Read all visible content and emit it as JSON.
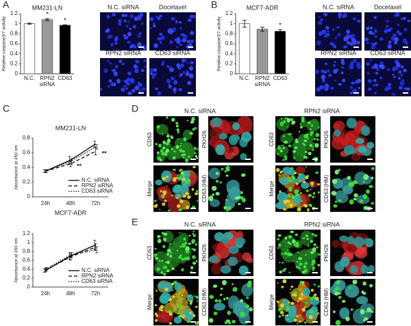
{
  "figure": {
    "panel_letters": [
      "A",
      "B",
      "C",
      "D",
      "E"
    ],
    "A_images": [
      "N.C. siRNA",
      "Docetaxel",
      "RPN2 siRNA",
      "CD63 siRNA"
    ],
    "B_images": [
      "N.C. siRNA",
      "Docetaxel",
      "RPN2 siRNA",
      "CD63 siRNA"
    ],
    "D": [
      {
        "title": "N.C. siRNA",
        "channels": [
          "CD63",
          "PKH26",
          "Merge",
          "CD63 (HM)"
        ]
      },
      {
        "title": "RPN2 siRNA",
        "channels": [
          "CD63",
          "PKH26",
          "Merge",
          "CD63 (HM)"
        ]
      }
    ],
    "E": [
      {
        "title": "N.C. siRNA",
        "channels": [
          "CD63",
          "PKH26",
          "Merge",
          "CD63 (HM)"
        ]
      },
      {
        "title": "RPN2 siRNA",
        "channels": [
          "CD63",
          "PKH26",
          "Merge",
          "CD63 (HM)"
        ]
      }
    ]
  },
  "chart_data": [
    {
      "type": "bar",
      "title": "MM231-LN",
      "ylabel": "Relative caspase3/7 activity",
      "xlabel": "siRNA",
      "categories": [
        "N.C.",
        "RPN2",
        "CD63"
      ],
      "values": [
        1.0,
        1.08,
        0.97
      ],
      "errors": [
        0.01,
        0.02,
        0.01
      ],
      "colors": [
        "#ffffff",
        "#999999",
        "#000000"
      ],
      "significance": [
        null,
        "*",
        "*"
      ],
      "ylim": [
        0,
        1.2
      ],
      "yticks": [
        0,
        0.2,
        0.4,
        0.6,
        0.8,
        1,
        1.2
      ]
    },
    {
      "type": "bar",
      "title": "MCF7-ADR",
      "ylabel": "Relative caspase3/7 activity",
      "xlabel": "siRNA",
      "categories": [
        "N.C.",
        "RPN2",
        "CD63"
      ],
      "values": [
        1.0,
        0.89,
        0.85
      ],
      "errors": [
        0.07,
        0.04,
        0.03
      ],
      "colors": [
        "#ffffff",
        "#999999",
        "#000000"
      ],
      "significance": [
        null,
        null,
        "*"
      ],
      "ylim": [
        0,
        1.2
      ],
      "yticks": [
        0,
        0.2,
        0.4,
        0.6,
        0.8,
        1,
        1.2
      ]
    },
    {
      "type": "line",
      "title": "MM231-LN",
      "ylabel": "Absorbance at 450 nm",
      "categories": [
        "24h",
        "48h",
        "72h"
      ],
      "ylim": [
        0,
        0.8
      ],
      "yticks": [
        0,
        0.2,
        0.4,
        0.6,
        0.8
      ],
      "series": [
        {
          "name": "N.C. siRNA",
          "color": "#000000",
          "dash": "solid",
          "values": [
            0.35,
            0.5,
            0.72
          ],
          "errors": [
            0.02,
            0.05,
            0.04
          ]
        },
        {
          "name": "RPN2 siRNA",
          "color": "#000000",
          "dash": "dashed",
          "values": [
            0.35,
            0.45,
            0.62
          ],
          "errors": [
            0.02,
            0.04,
            0.05
          ],
          "significance": [
            null,
            "**",
            "**"
          ]
        },
        {
          "name": "CD63 siRNA",
          "color": "#000000",
          "dash": "dotted",
          "values": [
            0.35,
            0.48,
            0.68
          ],
          "errors": [
            0.02,
            0.04,
            0.03
          ]
        }
      ]
    },
    {
      "type": "line",
      "title": "MCF7-ADR",
      "ylabel": "Absorbance at 450 nm",
      "categories": [
        "24h",
        "48h",
        "72h"
      ],
      "ylim": [
        0,
        1.2
      ],
      "yticks": [
        0,
        0.2,
        0.4,
        0.6,
        0.8,
        1,
        1.2
      ],
      "series": [
        {
          "name": "N.C. siRNA",
          "color": "#000000",
          "dash": "solid",
          "values": [
            0.37,
            0.7,
            0.95
          ],
          "errors": [
            0.04,
            0.08,
            0.1
          ]
        },
        {
          "name": "RPN2 siRNA",
          "color": "#000000",
          "dash": "dashed",
          "values": [
            0.38,
            0.68,
            0.9
          ],
          "errors": [
            0.04,
            0.07,
            0.08
          ]
        },
        {
          "name": "CD63 siRNA",
          "color": "#000000",
          "dash": "dotted",
          "values": [
            0.4,
            0.72,
            0.84
          ],
          "errors": [
            0.04,
            0.06,
            0.07
          ]
        }
      ]
    }
  ]
}
